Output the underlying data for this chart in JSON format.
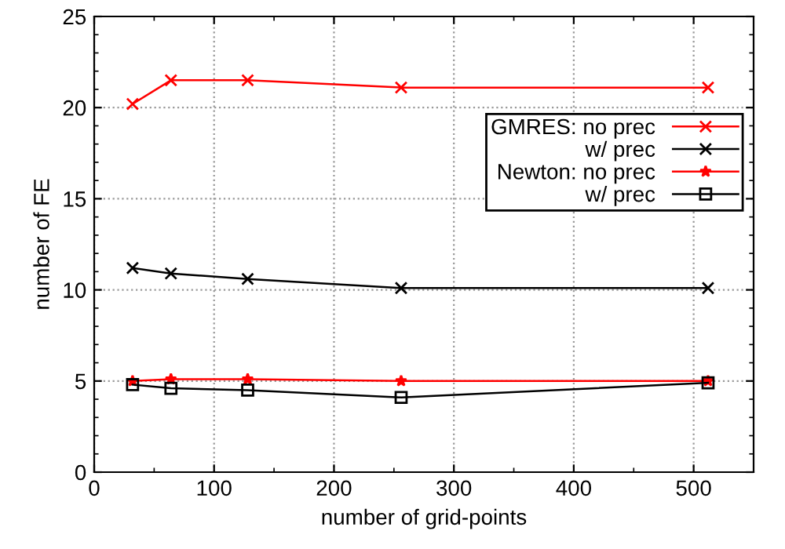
{
  "chart_data": {
    "type": "line",
    "xlabel": "number of grid-points",
    "ylabel": "number of FE",
    "x": [
      32,
      64,
      128,
      256,
      512
    ],
    "series": [
      {
        "name": "GMRES: no prec",
        "color": "#ff0000",
        "marker": "cross",
        "values": [
          20.2,
          21.5,
          21.5,
          21.1,
          21.1
        ]
      },
      {
        "name": "w/ prec",
        "color": "#000000",
        "marker": "cross",
        "values": [
          11.2,
          10.9,
          10.6,
          10.1,
          10.1
        ]
      },
      {
        "name": "Newton: no prec",
        "color": "#ff0000",
        "marker": "star",
        "values": [
          5.0,
          5.1,
          5.1,
          5.0,
          5.0
        ]
      },
      {
        "name": "w/ prec",
        "color": "#000000",
        "marker": "square",
        "values": [
          4.8,
          4.6,
          4.5,
          4.1,
          4.9
        ]
      }
    ],
    "xlim": [
      0,
      550
    ],
    "xticks": [
      0,
      100,
      200,
      300,
      400,
      500
    ],
    "ylim": [
      0,
      25
    ],
    "yticks": [
      0,
      5,
      10,
      15,
      20,
      25
    ],
    "grid": true,
    "legend": "right",
    "line_style": "solid"
  }
}
